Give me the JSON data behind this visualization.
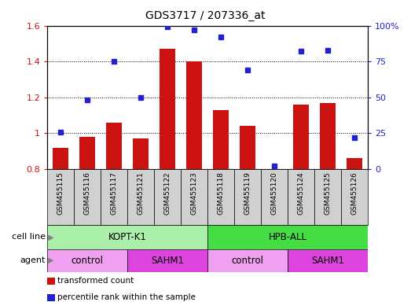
{
  "title": "GDS3717 / 207336_at",
  "samples": [
    "GSM455115",
    "GSM455116",
    "GSM455117",
    "GSM455121",
    "GSM455122",
    "GSM455123",
    "GSM455118",
    "GSM455119",
    "GSM455120",
    "GSM455124",
    "GSM455125",
    "GSM455126"
  ],
  "transformed_count": [
    0.92,
    0.98,
    1.06,
    0.97,
    1.47,
    1.4,
    1.13,
    1.04,
    0.8,
    1.16,
    1.17,
    0.86
  ],
  "percentile_rank": [
    26,
    48,
    75,
    50,
    99,
    97,
    92,
    69,
    2,
    82,
    83,
    22
  ],
  "bar_color": "#cc1111",
  "dot_color": "#2222cc",
  "ylim_left": [
    0.8,
    1.6
  ],
  "ylim_right": [
    0,
    100
  ],
  "yticks_left": [
    0.8,
    1.0,
    1.2,
    1.4,
    1.6
  ],
  "ytick_labels_left": [
    "0.8",
    "1",
    "1.2",
    "1.4",
    "1.6"
  ],
  "yticks_right": [
    0,
    25,
    50,
    75,
    100
  ],
  "ytick_labels_right": [
    "0",
    "25",
    "50",
    "75",
    "100%"
  ],
  "cell_lines": [
    {
      "label": "KOPT-K1",
      "start": 0,
      "end": 6,
      "color": "#aaf0aa"
    },
    {
      "label": "HPB-ALL",
      "start": 6,
      "end": 12,
      "color": "#44dd44"
    }
  ],
  "agents": [
    {
      "label": "control",
      "start": 0,
      "end": 3,
      "color": "#f0a0f0"
    },
    {
      "label": "SAHM1",
      "start": 3,
      "end": 6,
      "color": "#dd44dd"
    },
    {
      "label": "control",
      "start": 6,
      "end": 9,
      "color": "#f0a0f0"
    },
    {
      "label": "SAHM1",
      "start": 9,
      "end": 12,
      "color": "#dd44dd"
    }
  ],
  "legend_items": [
    {
      "label": "transformed count",
      "color": "#cc1111"
    },
    {
      "label": "percentile rank within the sample",
      "color": "#2222cc"
    }
  ],
  "plot_bg_color": "#ffffff",
  "tick_bg_color": "#d0d0d0",
  "grid_color": "#000000"
}
